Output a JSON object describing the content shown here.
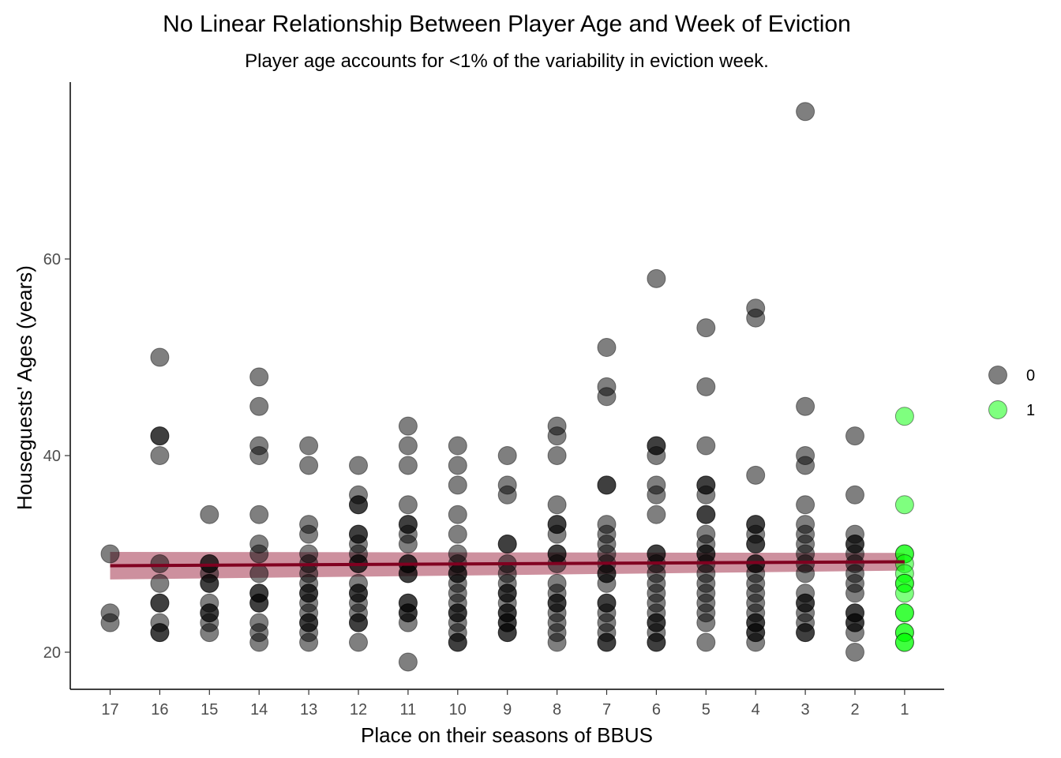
{
  "chart_data": {
    "type": "scatter",
    "title": "No Linear Relationship Between Player Age and Week of Eviction",
    "subtitle": "Player age accounts for <1% of the variability in eviction week.",
    "xlabel": "Place on their seasons of BBUS",
    "ylabel": "Houseguests' Ages (years)",
    "x_categories": [
      "17",
      "16",
      "15",
      "14",
      "13",
      "12",
      "11",
      "10",
      "9",
      "8",
      "7",
      "6",
      "5",
      "4",
      "3",
      "2",
      "1"
    ],
    "x_reversed": true,
    "y_ticks": [
      20,
      40,
      60
    ],
    "ylim": [
      16.5,
      77.5
    ],
    "grid": false,
    "legend": {
      "placement": "right",
      "entries": [
        {
          "label": "0",
          "color": "#000000"
        },
        {
          "label": "1",
          "color": "#00ff00"
        }
      ]
    },
    "point_opacity": 0.5,
    "series": [
      {
        "name": "0",
        "color": "#000000",
        "points": [
          [
            17,
            30
          ],
          [
            17,
            24
          ],
          [
            17,
            23
          ],
          [
            16,
            50
          ],
          [
            16,
            42
          ],
          [
            16,
            42
          ],
          [
            16,
            40
          ],
          [
            16,
            29
          ],
          [
            16,
            27
          ],
          [
            16,
            25
          ],
          [
            16,
            25
          ],
          [
            16,
            23
          ],
          [
            16,
            22
          ],
          [
            16,
            22
          ],
          [
            15,
            34
          ],
          [
            15,
            29
          ],
          [
            15,
            29
          ],
          [
            15,
            28
          ],
          [
            15,
            27
          ],
          [
            15,
            27
          ],
          [
            15,
            25
          ],
          [
            15,
            24
          ],
          [
            15,
            24
          ],
          [
            15,
            23
          ],
          [
            15,
            22
          ],
          [
            14,
            48
          ],
          [
            14,
            45
          ],
          [
            14,
            41
          ],
          [
            14,
            40
          ],
          [
            14,
            34
          ],
          [
            14,
            31
          ],
          [
            14,
            30
          ],
          [
            14,
            28
          ],
          [
            14,
            26
          ],
          [
            14,
            26
          ],
          [
            14,
            25
          ],
          [
            14,
            25
          ],
          [
            14,
            23
          ],
          [
            14,
            22
          ],
          [
            14,
            21
          ],
          [
            13,
            41
          ],
          [
            13,
            39
          ],
          [
            13,
            33
          ],
          [
            13,
            32
          ],
          [
            13,
            30
          ],
          [
            13,
            29
          ],
          [
            13,
            28
          ],
          [
            13,
            27
          ],
          [
            13,
            26
          ],
          [
            13,
            26
          ],
          [
            13,
            25
          ],
          [
            13,
            24
          ],
          [
            13,
            23
          ],
          [
            13,
            23
          ],
          [
            13,
            22
          ],
          [
            13,
            21
          ],
          [
            12,
            39
          ],
          [
            12,
            36
          ],
          [
            12,
            35
          ],
          [
            12,
            35
          ],
          [
            12,
            32
          ],
          [
            12,
            32
          ],
          [
            12,
            31
          ],
          [
            12,
            30
          ],
          [
            12,
            29
          ],
          [
            12,
            29
          ],
          [
            12,
            27
          ],
          [
            12,
            26
          ],
          [
            12,
            26
          ],
          [
            12,
            25
          ],
          [
            12,
            24
          ],
          [
            12,
            23
          ],
          [
            12,
            23
          ],
          [
            12,
            21
          ],
          [
            11,
            43
          ],
          [
            11,
            41
          ],
          [
            11,
            39
          ],
          [
            11,
            35
          ],
          [
            11,
            33
          ],
          [
            11,
            33
          ],
          [
            11,
            32
          ],
          [
            11,
            31
          ],
          [
            11,
            29
          ],
          [
            11,
            29
          ],
          [
            11,
            28
          ],
          [
            11,
            28
          ],
          [
            11,
            25
          ],
          [
            11,
            25
          ],
          [
            11,
            24
          ],
          [
            11,
            24
          ],
          [
            11,
            23
          ],
          [
            11,
            19
          ],
          [
            10,
            41
          ],
          [
            10,
            39
          ],
          [
            10,
            37
          ],
          [
            10,
            34
          ],
          [
            10,
            32
          ],
          [
            10,
            30
          ],
          [
            10,
            29
          ],
          [
            10,
            28
          ],
          [
            10,
            28
          ],
          [
            10,
            27
          ],
          [
            10,
            26
          ],
          [
            10,
            25
          ],
          [
            10,
            24
          ],
          [
            10,
            24
          ],
          [
            10,
            23
          ],
          [
            10,
            22
          ],
          [
            10,
            21
          ],
          [
            10,
            21
          ],
          [
            9,
            40
          ],
          [
            9,
            37
          ],
          [
            9,
            36
          ],
          [
            9,
            31
          ],
          [
            9,
            31
          ],
          [
            9,
            29
          ],
          [
            9,
            28
          ],
          [
            9,
            27
          ],
          [
            9,
            26
          ],
          [
            9,
            26
          ],
          [
            9,
            25
          ],
          [
            9,
            24
          ],
          [
            9,
            24
          ],
          [
            9,
            23
          ],
          [
            9,
            23
          ],
          [
            9,
            22
          ],
          [
            9,
            22
          ],
          [
            8,
            43
          ],
          [
            8,
            42
          ],
          [
            8,
            40
          ],
          [
            8,
            35
          ],
          [
            8,
            33
          ],
          [
            8,
            33
          ],
          [
            8,
            32
          ],
          [
            8,
            30
          ],
          [
            8,
            30
          ],
          [
            8,
            29
          ],
          [
            8,
            27
          ],
          [
            8,
            26
          ],
          [
            8,
            25
          ],
          [
            8,
            25
          ],
          [
            8,
            24
          ],
          [
            8,
            23
          ],
          [
            8,
            22
          ],
          [
            8,
            21
          ],
          [
            7,
            51
          ],
          [
            7,
            47
          ],
          [
            7,
            46
          ],
          [
            7,
            37
          ],
          [
            7,
            37
          ],
          [
            7,
            33
          ],
          [
            7,
            32
          ],
          [
            7,
            31
          ],
          [
            7,
            30
          ],
          [
            7,
            29
          ],
          [
            7,
            28
          ],
          [
            7,
            28
          ],
          [
            7,
            27
          ],
          [
            7,
            25
          ],
          [
            7,
            25
          ],
          [
            7,
            24
          ],
          [
            7,
            23
          ],
          [
            7,
            22
          ],
          [
            7,
            21
          ],
          [
            7,
            21
          ],
          [
            6,
            58
          ],
          [
            6,
            41
          ],
          [
            6,
            41
          ],
          [
            6,
            40
          ],
          [
            6,
            37
          ],
          [
            6,
            36
          ],
          [
            6,
            34
          ],
          [
            6,
            30
          ],
          [
            6,
            30
          ],
          [
            6,
            29
          ],
          [
            6,
            28
          ],
          [
            6,
            27
          ],
          [
            6,
            26
          ],
          [
            6,
            25
          ],
          [
            6,
            24
          ],
          [
            6,
            23
          ],
          [
            6,
            23
          ],
          [
            6,
            22
          ],
          [
            6,
            21
          ],
          [
            6,
            21
          ],
          [
            5,
            53
          ],
          [
            5,
            47
          ],
          [
            5,
            41
          ],
          [
            5,
            37
          ],
          [
            5,
            37
          ],
          [
            5,
            36
          ],
          [
            5,
            34
          ],
          [
            5,
            34
          ],
          [
            5,
            32
          ],
          [
            5,
            31
          ],
          [
            5,
            30
          ],
          [
            5,
            30
          ],
          [
            5,
            29
          ],
          [
            5,
            28
          ],
          [
            5,
            27
          ],
          [
            5,
            26
          ],
          [
            5,
            25
          ],
          [
            5,
            24
          ],
          [
            5,
            23
          ],
          [
            5,
            21
          ],
          [
            4,
            55
          ],
          [
            4,
            54
          ],
          [
            4,
            38
          ],
          [
            4,
            33
          ],
          [
            4,
            33
          ],
          [
            4,
            32
          ],
          [
            4,
            31
          ],
          [
            4,
            31
          ],
          [
            4,
            29
          ],
          [
            4,
            29
          ],
          [
            4,
            28
          ],
          [
            4,
            27
          ],
          [
            4,
            26
          ],
          [
            4,
            25
          ],
          [
            4,
            24
          ],
          [
            4,
            23
          ],
          [
            4,
            23
          ],
          [
            4,
            22
          ],
          [
            4,
            22
          ],
          [
            4,
            21
          ],
          [
            3,
            75
          ],
          [
            3,
            45
          ],
          [
            3,
            40
          ],
          [
            3,
            39
          ],
          [
            3,
            35
          ],
          [
            3,
            33
          ],
          [
            3,
            32
          ],
          [
            3,
            31
          ],
          [
            3,
            30
          ],
          [
            3,
            29
          ],
          [
            3,
            28
          ],
          [
            3,
            26
          ],
          [
            3,
            25
          ],
          [
            3,
            25
          ],
          [
            3,
            24
          ],
          [
            3,
            23
          ],
          [
            3,
            22
          ],
          [
            3,
            22
          ],
          [
            2,
            42
          ],
          [
            2,
            36
          ],
          [
            2,
            32
          ],
          [
            2,
            31
          ],
          [
            2,
            31
          ],
          [
            2,
            30
          ],
          [
            2,
            29
          ],
          [
            2,
            28
          ],
          [
            2,
            27
          ],
          [
            2,
            26
          ],
          [
            2,
            24
          ],
          [
            2,
            24
          ],
          [
            2,
            23
          ],
          [
            2,
            23
          ],
          [
            2,
            22
          ],
          [
            2,
            20
          ]
        ]
      },
      {
        "name": "1",
        "color": "#00ff00",
        "points": [
          [
            1,
            44
          ],
          [
            1,
            35
          ],
          [
            1,
            30
          ],
          [
            1,
            30
          ],
          [
            1,
            29
          ],
          [
            1,
            28
          ],
          [
            1,
            27
          ],
          [
            1,
            27
          ],
          [
            1,
            26
          ],
          [
            1,
            24
          ],
          [
            1,
            24
          ],
          [
            1,
            22
          ],
          [
            1,
            22
          ],
          [
            1,
            21
          ],
          [
            1,
            21
          ]
        ]
      }
    ],
    "trend_line": {
      "color": "#800020",
      "band_color": "#bc6b7e",
      "x": [
        17,
        1
      ],
      "y": [
        28.8,
        29.2
      ],
      "ci_lower": [
        27.4,
        28.3
      ],
      "ci_upper": [
        30.2,
        30.1
      ]
    }
  }
}
